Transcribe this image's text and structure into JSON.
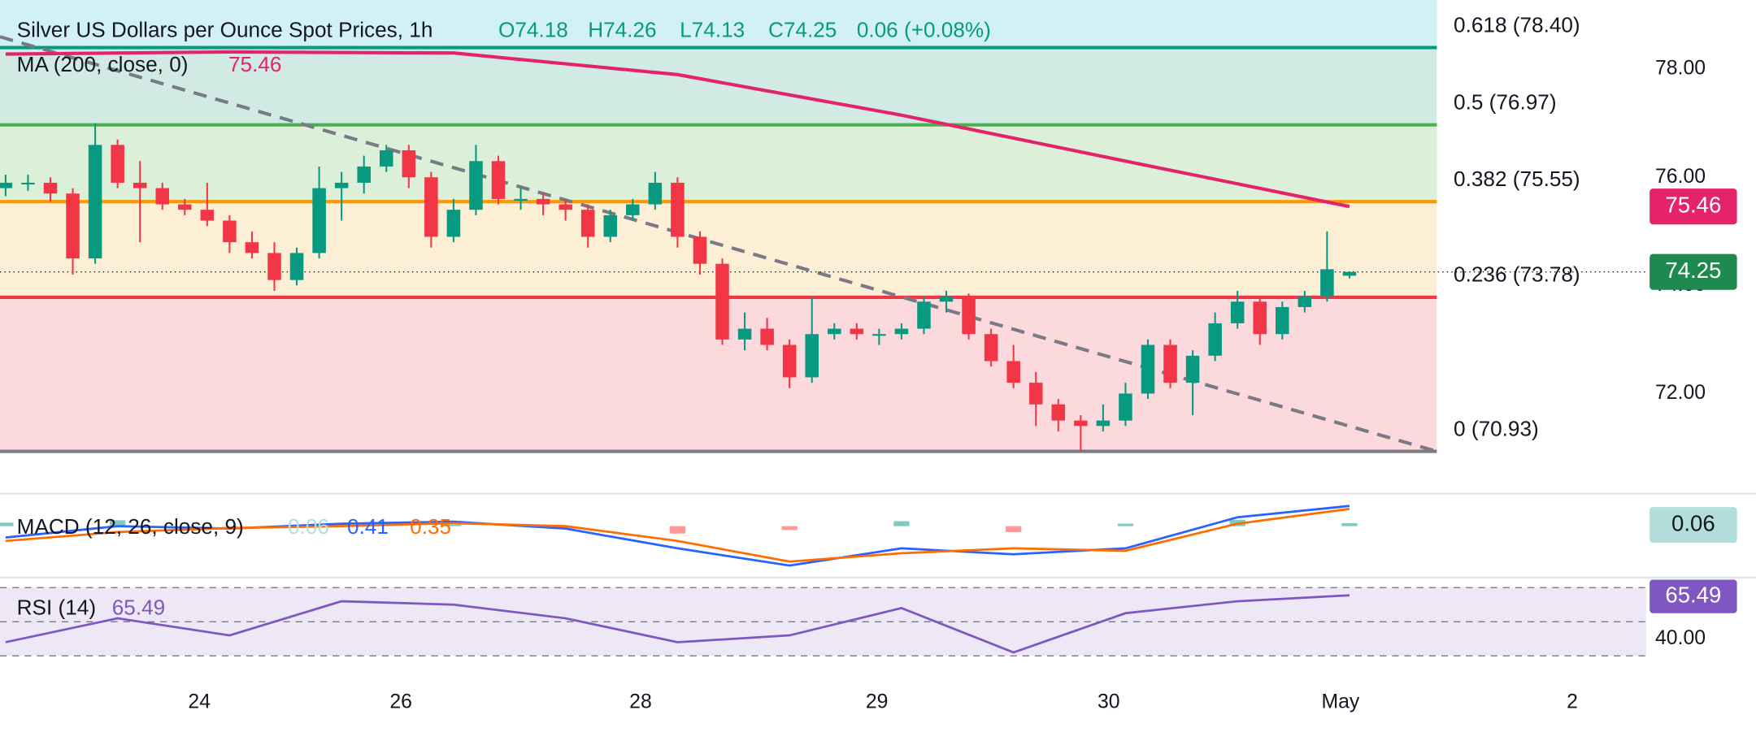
{
  "chart_data": {
    "type": "candlestick",
    "title": "Silver US Dollars per Ounce Spot Prices, 1h",
    "ohlc_labels": [
      "O74.18",
      "H74.26",
      "L74.13",
      "C74.25"
    ],
    "change_label": "0.06 (+0.08%)",
    "colors": {
      "up": "#089981",
      "down": "#f23645"
    },
    "candles": [
      [
        75.8,
        76.05,
        75.65,
        75.9
      ],
      [
        75.9,
        76.05,
        75.75,
        75.9
      ],
      [
        75.9,
        76.0,
        75.55,
        75.7
      ],
      [
        75.7,
        75.8,
        74.2,
        74.5
      ],
      [
        74.5,
        77.0,
        74.4,
        76.6
      ],
      [
        76.6,
        76.7,
        75.8,
        75.9
      ],
      [
        75.9,
        76.3,
        74.8,
        75.8
      ],
      [
        75.8,
        75.9,
        75.4,
        75.5
      ],
      [
        75.5,
        75.6,
        75.3,
        75.4
      ],
      [
        75.4,
        75.9,
        75.1,
        75.2
      ],
      [
        75.2,
        75.3,
        74.6,
        74.8
      ],
      [
        74.8,
        75.0,
        74.5,
        74.6
      ],
      [
        74.6,
        74.8,
        73.9,
        74.1
      ],
      [
        74.1,
        74.7,
        74.0,
        74.6
      ],
      [
        74.6,
        76.2,
        74.5,
        75.8
      ],
      [
        75.8,
        76.1,
        75.2,
        75.9
      ],
      [
        75.9,
        76.4,
        75.7,
        76.2
      ],
      [
        76.2,
        76.6,
        76.1,
        76.5
      ],
      [
        76.5,
        76.6,
        75.8,
        76.0
      ],
      [
        76.0,
        76.1,
        74.7,
        74.9
      ],
      [
        74.9,
        75.6,
        74.8,
        75.4
      ],
      [
        75.4,
        76.6,
        75.3,
        76.3
      ],
      [
        76.3,
        76.4,
        75.5,
        75.6
      ],
      [
        75.6,
        75.8,
        75.4,
        75.6
      ],
      [
        75.6,
        75.7,
        75.3,
        75.5
      ],
      [
        75.5,
        75.6,
        75.2,
        75.4
      ],
      [
        75.4,
        75.5,
        74.7,
        74.9
      ],
      [
        74.9,
        75.4,
        74.8,
        75.3
      ],
      [
        75.3,
        75.6,
        75.2,
        75.5
      ],
      [
        75.5,
        76.1,
        75.4,
        75.9
      ],
      [
        75.9,
        76.0,
        74.7,
        74.9
      ],
      [
        74.9,
        75.0,
        74.2,
        74.4
      ],
      [
        74.4,
        74.5,
        72.9,
        73.0
      ],
      [
        73.0,
        73.5,
        72.8,
        73.2
      ],
      [
        73.2,
        73.4,
        72.8,
        72.9
      ],
      [
        72.9,
        73.0,
        72.1,
        72.3
      ],
      [
        72.3,
        73.8,
        72.2,
        73.1
      ],
      [
        73.1,
        73.3,
        73.0,
        73.2
      ],
      [
        73.2,
        73.3,
        73.0,
        73.1
      ],
      [
        73.1,
        73.2,
        72.9,
        73.1
      ],
      [
        73.1,
        73.3,
        73.0,
        73.2
      ],
      [
        73.2,
        73.8,
        73.1,
        73.7
      ],
      [
        73.7,
        73.9,
        73.5,
        73.8
      ],
      [
        73.8,
        73.85,
        73.0,
        73.1
      ],
      [
        73.1,
        73.2,
        72.5,
        72.6
      ],
      [
        72.6,
        72.9,
        72.1,
        72.2
      ],
      [
        72.2,
        72.4,
        71.4,
        71.8
      ],
      [
        71.8,
        71.9,
        71.3,
        71.5
      ],
      [
        71.5,
        71.6,
        70.93,
        71.4
      ],
      [
        71.4,
        71.8,
        71.3,
        71.5
      ],
      [
        71.5,
        72.2,
        71.4,
        72.0
      ],
      [
        72.0,
        73.0,
        71.9,
        72.9
      ],
      [
        72.9,
        73.0,
        72.1,
        72.2
      ],
      [
        72.2,
        72.8,
        71.6,
        72.7
      ],
      [
        72.7,
        73.5,
        72.6,
        73.3
      ],
      [
        73.3,
        73.9,
        73.2,
        73.7
      ],
      [
        73.7,
        73.8,
        72.9,
        73.1
      ],
      [
        73.1,
        73.7,
        73.0,
        73.6
      ],
      [
        73.6,
        73.9,
        73.5,
        73.8
      ],
      [
        73.8,
        75.0,
        73.7,
        74.3
      ],
      [
        74.18,
        74.26,
        74.13,
        74.25
      ]
    ],
    "ylim": [
      70.17,
      79.28
    ],
    "yticks": [
      {
        "value": 78,
        "label": "78.00"
      },
      {
        "value": 76,
        "label": "76.00"
      },
      {
        "value": 74,
        "label": "74.00"
      },
      {
        "value": 72,
        "label": "72.00"
      }
    ],
    "xticks": [
      {
        "value": 8.65,
        "label": "24"
      },
      {
        "value": 17.65,
        "label": "26"
      },
      {
        "value": 28.35,
        "label": "28"
      },
      {
        "value": 38.9,
        "label": "29"
      },
      {
        "value": 49.25,
        "label": "30"
      },
      {
        "value": 59.6,
        "label": "May"
      },
      {
        "value": 69.95,
        "label": "2"
      }
    ],
    "ma": {
      "name": "MA (200, close, 0)",
      "value_label": "75.46",
      "color": "#e5236b",
      "x": [
        0,
        10,
        20,
        30,
        40,
        50,
        60
      ],
      "values": [
        78.28,
        78.32,
        78.3,
        77.9,
        77.15,
        76.3,
        75.46
      ]
    },
    "last_price": {
      "value": 74.25,
      "label": "74.25",
      "color": "#1f8a50"
    },
    "fib_levels": [
      {
        "label": "0.618 (78.40)",
        "value": 78.4,
        "color": "#089981",
        "fill": "#d2f1f4"
      },
      {
        "label": "0.5 (76.97)",
        "value": 76.97,
        "color": "#4caf50",
        "fill": "#d1ebe4"
      },
      {
        "label": "0.382 (75.55)",
        "value": 75.55,
        "color": "#ff9800",
        "fill": "#dcefd8"
      },
      {
        "label": "0.236 (73.78)",
        "value": 73.78,
        "color": "#f23645",
        "fill": "#fdefd5"
      },
      {
        "label": "0 (70.93)",
        "value": 70.93,
        "color": "#787b86",
        "fill": "#fbd9dd"
      }
    ],
    "trendline": {
      "x": [
        -0.25,
        63.9
      ],
      "y": [
        78.6,
        70.93
      ],
      "color": "#787b86"
    },
    "macd": {
      "name": "MACD (12, 26, close, 9)",
      "legend_values": [
        "0.06",
        "0.41",
        "0.35"
      ],
      "ylim": [
        -1.02,
        0.57
      ],
      "x": [
        0,
        5,
        10,
        15,
        20,
        25,
        30,
        35,
        40,
        45,
        50,
        55,
        60
      ],
      "macd": {
        "color": "#2962ff",
        "values": [
          -0.23,
          0.0,
          -0.05,
          0.05,
          0.09,
          -0.05,
          -0.45,
          -0.8,
          -0.45,
          -0.57,
          -0.45,
          0.18,
          0.41
        ]
      },
      "signal": {
        "color": "#ff6d00",
        "values": [
          -0.3,
          -0.12,
          -0.04,
          0.0,
          0.06,
          0.0,
          -0.3,
          -0.72,
          -0.55,
          -0.45,
          -0.5,
          0.05,
          0.35
        ]
      },
      "hist": {
        "colors": {
          "up": "#26a69a",
          "down": "#ff5252"
        },
        "values": [
          0.07,
          0.12,
          -0.01,
          0.05,
          0.03,
          -0.05,
          -0.15,
          -0.08,
          0.1,
          -0.12,
          0.05,
          0.13,
          0.06
        ]
      },
      "badge_color": "#b2dfdb"
    },
    "rsi": {
      "name": "RSI (14)",
      "value_label": "65.49",
      "color": "#7e57c2",
      "fill": "#ede7f6",
      "ylim": [
        20.8,
        74.6
      ],
      "levels": [
        70,
        50,
        30
      ],
      "yticks": [
        {
          "value": 40,
          "label": "40.00"
        }
      ],
      "x": [
        0,
        5,
        10,
        15,
        20,
        25,
        30,
        35,
        40,
        45,
        50,
        55,
        60
      ],
      "values": [
        38,
        52,
        42,
        62,
        60,
        52,
        38,
        42,
        58,
        32,
        55,
        62,
        65.49
      ]
    }
  }
}
